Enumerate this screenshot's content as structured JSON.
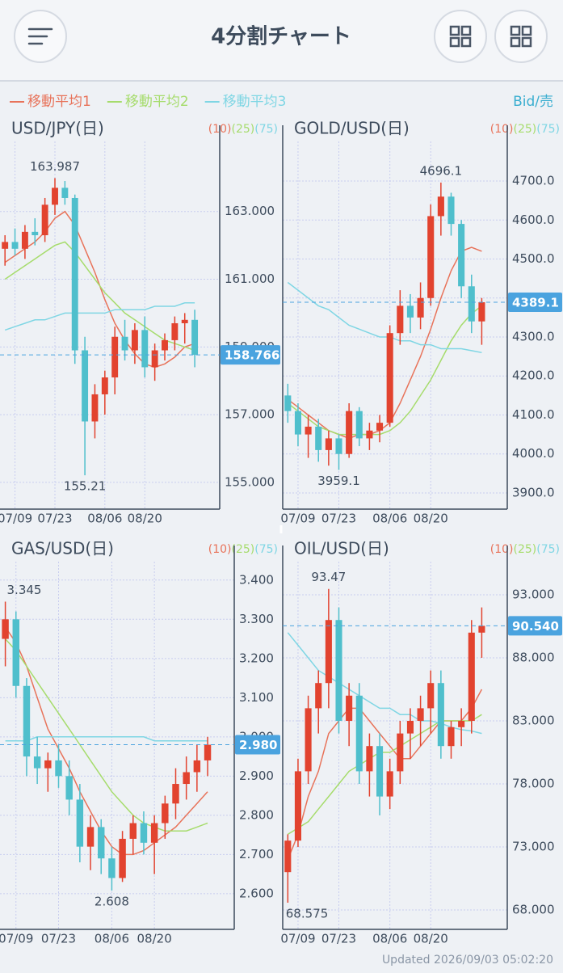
{
  "header": {
    "title": "4分割チャート"
  },
  "price_side": "Bid/売",
  "footer": "Updated 2026/09/03 05:02:20",
  "chart_data": [
    {
      "type": "candlestick",
      "title": "USD/JPY(日)",
      "categories": [
        null,
        "07/09",
        null,
        null,
        null,
        "07/23",
        null,
        null,
        null,
        null,
        "08/06",
        null,
        null,
        null,
        "08/20",
        null,
        null,
        null,
        null,
        null
      ],
      "open": [
        161.9,
        162.1,
        161.9,
        162.4,
        162.3,
        163.2,
        163.7,
        163.4,
        158.9,
        156.8,
        157.6,
        158.1,
        159.3,
        158.9,
        159.5,
        158.4,
        158.9,
        159.2,
        159.7,
        159.8
      ],
      "high": [
        162.3,
        162.5,
        162.6,
        162.8,
        163.4,
        163.987,
        163.9,
        163.5,
        159.3,
        157.9,
        158.3,
        159.6,
        159.8,
        159.7,
        159.9,
        159.1,
        159.4,
        159.9,
        160.0,
        160.1
      ],
      "low": [
        161.4,
        161.7,
        161.6,
        162.0,
        162.1,
        162.9,
        163.2,
        158.5,
        155.21,
        156.3,
        157.0,
        157.6,
        158.6,
        158.5,
        158.1,
        158.0,
        158.6,
        158.9,
        159.1,
        158.4
      ],
      "close": [
        162.1,
        161.9,
        162.4,
        162.3,
        163.2,
        163.7,
        163.4,
        158.9,
        156.8,
        157.6,
        158.1,
        159.3,
        158.9,
        159.5,
        158.4,
        158.9,
        159.2,
        159.7,
        159.8,
        158.766
      ],
      "series": [
        {
          "name": "移動平均1",
          "label": "(10)",
          "color": "#e8735a",
          "values": [
            161.5,
            161.7,
            161.9,
            162.1,
            162.4,
            162.8,
            163.0,
            162.6,
            161.9,
            161.2,
            160.4,
            159.7,
            159.2,
            158.8,
            158.5,
            158.4,
            158.5,
            158.7,
            159.0,
            159.1
          ]
        },
        {
          "name": "移動平均2",
          "label": "(25)",
          "color": "#a6dc6c",
          "values": [
            161.0,
            161.2,
            161.4,
            161.6,
            161.8,
            162.0,
            162.1,
            161.8,
            161.4,
            161.0,
            160.6,
            160.3,
            160.0,
            159.8,
            159.6,
            159.4,
            159.2,
            159.1,
            159.0,
            158.9
          ]
        },
        {
          "name": "移動平均3",
          "label": "(75)",
          "color": "#7fd6e4",
          "values": [
            159.5,
            159.6,
            159.7,
            159.8,
            159.8,
            159.9,
            160.0,
            160.0,
            160.0,
            160.0,
            160.0,
            160.1,
            160.1,
            160.1,
            160.1,
            160.2,
            160.2,
            160.2,
            160.3,
            160.3
          ]
        }
      ],
      "high_label": 163.987,
      "low_label": 155.21,
      "current": 158.766,
      "ylim": [
        154.21,
        165.07
      ],
      "yticks": [
        {
          "value": 163,
          "label": "163.000"
        },
        {
          "value": 161,
          "label": "161.000"
        },
        {
          "value": 159,
          "label": "159.000"
        },
        {
          "value": 157,
          "label": "157.000"
        },
        {
          "value": 155,
          "label": "155.000"
        }
      ]
    },
    {
      "type": "candlestick",
      "title": "GOLD/USD(日)",
      "categories": [
        null,
        "07/09",
        null,
        null,
        null,
        "07/23",
        null,
        null,
        null,
        null,
        "08/06",
        null,
        null,
        null,
        "08/20",
        null,
        null,
        null,
        null,
        null
      ],
      "open": [
        4150,
        4110,
        4050,
        4070,
        4010,
        4040,
        4000,
        4110,
        4040,
        4060,
        4080,
        4310,
        4380,
        4350,
        4400,
        4610,
        4660,
        4590,
        4430,
        4340
      ],
      "high": [
        4180,
        4130,
        4100,
        4090,
        4060,
        4050,
        4130,
        4120,
        4080,
        4100,
        4330,
        4420,
        4410,
        4440,
        4640,
        4696.1,
        4670,
        4600,
        4460,
        4400
      ],
      "low": [
        4080,
        4020,
        3990,
        3980,
        3970,
        3959.1,
        3990,
        4020,
        4010,
        4030,
        4070,
        4280,
        4310,
        4320,
        4380,
        4560,
        4560,
        4400,
        4310,
        4280
      ],
      "close": [
        4110,
        4050,
        4070,
        4010,
        4040,
        4000,
        4110,
        4040,
        4060,
        4080,
        4310,
        4380,
        4350,
        4400,
        4610,
        4660,
        4590,
        4430,
        4340,
        4389.1
      ],
      "series": [
        {
          "name": "移動平均1",
          "label": "(10)",
          "color": "#e8735a",
          "values": [
            4140,
            4120,
            4100,
            4080,
            4060,
            4050,
            4040,
            4050,
            4050,
            4060,
            4080,
            4130,
            4190,
            4250,
            4320,
            4400,
            4470,
            4520,
            4530,
            4520
          ]
        },
        {
          "name": "移動平均2",
          "label": "(25)",
          "color": "#a6dc6c",
          "values": [
            4130,
            4110,
            4090,
            4070,
            4060,
            4050,
            4050,
            4050,
            4050,
            4050,
            4060,
            4080,
            4110,
            4150,
            4190,
            4240,
            4290,
            4330,
            4360,
            4380
          ]
        },
        {
          "name": "移動平均3",
          "label": "(75)",
          "color": "#7fd6e4",
          "values": [
            4440,
            4420,
            4400,
            4380,
            4370,
            4350,
            4330,
            4320,
            4310,
            4300,
            4300,
            4290,
            4290,
            4280,
            4280,
            4270,
            4270,
            4270,
            4265,
            4260
          ]
        }
      ],
      "high_label": 4696.1,
      "low_label": 3959.1,
      "current": 4389.1,
      "ylim": [
        3858.5,
        4801.6
      ],
      "yticks": [
        {
          "value": 4700,
          "label": "4700.0"
        },
        {
          "value": 4600,
          "label": "4600.0"
        },
        {
          "value": 4500,
          "label": "4500.0"
        },
        {
          "value": 4400,
          "label": "4400.0"
        },
        {
          "value": 4300,
          "label": "4300.0"
        },
        {
          "value": 4200,
          "label": "4200.0"
        },
        {
          "value": 4100,
          "label": "4100.0"
        },
        {
          "value": 4000,
          "label": "4000.0"
        },
        {
          "value": 3900,
          "label": "3900.0"
        }
      ]
    },
    {
      "type": "candlestick",
      "title": "GAS/USD(日)",
      "categories": [
        null,
        "07/09",
        null,
        null,
        null,
        "07/23",
        null,
        null,
        null,
        null,
        "08/06",
        null,
        null,
        null,
        "08/20",
        null,
        null,
        null,
        null,
        null
      ],
      "open": [
        3.25,
        3.3,
        3.13,
        2.95,
        2.92,
        2.94,
        2.9,
        2.84,
        2.72,
        2.77,
        2.69,
        2.64,
        2.74,
        2.78,
        2.73,
        2.78,
        2.83,
        2.88,
        2.91,
        2.94
      ],
      "high": [
        3.345,
        3.32,
        3.15,
        3.0,
        2.96,
        2.98,
        2.94,
        2.88,
        2.8,
        2.79,
        2.72,
        2.76,
        2.8,
        2.81,
        2.8,
        2.85,
        2.92,
        2.95,
        2.98,
        3.0
      ],
      "low": [
        3.18,
        3.1,
        2.9,
        2.88,
        2.86,
        2.87,
        2.8,
        2.68,
        2.66,
        2.65,
        2.608,
        2.63,
        2.7,
        2.7,
        2.65,
        2.74,
        2.79,
        2.84,
        2.86,
        2.9
      ],
      "close": [
        3.3,
        3.13,
        2.95,
        2.92,
        2.94,
        2.9,
        2.84,
        2.72,
        2.77,
        2.69,
        2.64,
        2.74,
        2.78,
        2.73,
        2.78,
        2.83,
        2.88,
        2.91,
        2.94,
        2.98
      ],
      "series": [
        {
          "name": "移動平均1",
          "label": "(10)",
          "color": "#e8735a",
          "values": [
            3.28,
            3.24,
            3.18,
            3.1,
            3.02,
            2.97,
            2.92,
            2.86,
            2.81,
            2.76,
            2.72,
            2.7,
            2.7,
            2.71,
            2.73,
            2.75,
            2.77,
            2.8,
            2.83,
            2.86
          ]
        },
        {
          "name": "移動平均2",
          "label": "(25)",
          "color": "#a6dc6c",
          "values": [
            3.25,
            3.22,
            3.18,
            3.14,
            3.1,
            3.06,
            3.02,
            2.98,
            2.94,
            2.9,
            2.86,
            2.83,
            2.8,
            2.78,
            2.77,
            2.76,
            2.76,
            2.76,
            2.77,
            2.78
          ]
        },
        {
          "name": "移動平均3",
          "label": "(75)",
          "color": "#7fd6e4",
          "values": [
            2.99,
            2.99,
            2.99,
            3.0,
            3.0,
            3.0,
            3.0,
            3.0,
            3.0,
            3.0,
            3.0,
            3.0,
            3.0,
            3.0,
            2.99,
            2.99,
            2.99,
            2.99,
            2.99,
            2.99
          ]
        }
      ],
      "high_label": 3.345,
      "low_label": 2.608,
      "current": {
        "value": 2.98,
        "label": "2.980"
      },
      "ylim": [
        2.509,
        3.447
      ],
      "yticks": [
        {
          "value": 3.4,
          "label": "3.400"
        },
        {
          "value": 3.3,
          "label": "3.300"
        },
        {
          "value": 3.2,
          "label": "3.200"
        },
        {
          "value": 3.1,
          "label": "3.100"
        },
        {
          "value": 3.0,
          "label": "3.000"
        },
        {
          "value": 2.9,
          "label": "2.900"
        },
        {
          "value": 2.8,
          "label": "2.800"
        },
        {
          "value": 2.7,
          "label": "2.700"
        },
        {
          "value": 2.6,
          "label": "2.600"
        }
      ]
    },
    {
      "type": "candlestick",
      "title": "OIL/USD(日)",
      "categories": [
        null,
        "07/09",
        null,
        null,
        null,
        "07/23",
        null,
        null,
        null,
        null,
        "08/06",
        null,
        null,
        null,
        "08/20",
        null,
        null,
        null,
        null,
        null
      ],
      "open": [
        71,
        73.5,
        79,
        84,
        86,
        91,
        83,
        85,
        79,
        81,
        77,
        79,
        82,
        83,
        84,
        86,
        81,
        82.5,
        83,
        90
      ],
      "high": [
        74,
        80,
        85,
        87,
        93.47,
        92,
        86,
        86,
        82,
        82,
        80,
        83,
        84,
        85,
        87,
        87,
        83,
        84,
        91,
        92
      ],
      "low": [
        68.575,
        73,
        78,
        82,
        84,
        82,
        81,
        78,
        77,
        75.5,
        76,
        78,
        80,
        81,
        82,
        80,
        80,
        81,
        82,
        88
      ],
      "close": [
        73.5,
        79,
        84,
        86,
        91,
        83,
        85,
        79,
        81,
        77,
        79,
        82,
        83,
        84,
        86,
        81,
        82.5,
        83,
        90,
        90.54
      ],
      "series": [
        {
          "name": "移動平均1",
          "label": "(10)",
          "color": "#e8735a",
          "values": [
            72,
            74,
            77,
            79,
            82,
            83,
            84,
            84,
            83,
            82,
            81,
            80,
            80,
            81,
            82,
            83,
            83,
            83,
            84,
            85.5
          ]
        },
        {
          "name": "移動平均2",
          "label": "(25)",
          "color": "#a6dc6c",
          "values": [
            74,
            74.5,
            75,
            76,
            77,
            78,
            79,
            79.5,
            80,
            80.5,
            80.5,
            81,
            81.5,
            82,
            82.5,
            83,
            83,
            83,
            83,
            83.5
          ]
        },
        {
          "name": "移動平均3",
          "label": "(75)",
          "color": "#7fd6e4",
          "values": [
            90,
            89,
            88,
            87,
            86.5,
            86,
            85.5,
            85,
            84.5,
            84,
            84,
            83.5,
            83.5,
            83,
            83,
            82.8,
            82.5,
            82.3,
            82.2,
            82
          ]
        }
      ],
      "high_label": 93.47,
      "low_label": 68.575,
      "current": {
        "value": 90.54,
        "label": "90.540"
      },
      "ylim": [
        66.46,
        95.63
      ],
      "yticks": [
        {
          "value": 93,
          "label": "93.000"
        },
        {
          "value": 88,
          "label": "88.000"
        },
        {
          "value": 83,
          "label": "83.000"
        },
        {
          "value": 78,
          "label": "78.000"
        },
        {
          "value": 73,
          "label": "73.000"
        },
        {
          "value": 68,
          "label": "68.000"
        }
      ]
    }
  ]
}
